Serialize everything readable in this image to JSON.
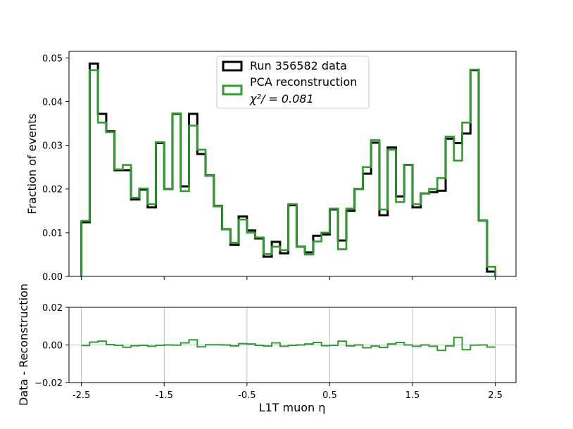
{
  "chart_data": [
    {
      "type": "histogram",
      "ylabel": "Fraction of events",
      "xlim": [
        -2.65,
        2.75
      ],
      "ylim": [
        0,
        0.0515
      ],
      "yticks": [
        "0.00",
        "0.01",
        "0.02",
        "0.03",
        "0.04",
        "0.05"
      ],
      "ytick_values": [
        0,
        0.01,
        0.02,
        0.03,
        0.04,
        0.05
      ],
      "bin_edges_start": -2.5,
      "bin_width": 0.1,
      "legend": {
        "placement": "top-center",
        "entries": [
          {
            "label": "Run 356582 data",
            "color": "#000000"
          },
          {
            "label": "PCA reconstruction",
            "color": "#2ca02c"
          }
        ],
        "chi2_text": "χ²/ = 0.081"
      },
      "series": [
        {
          "name": "Run 356582 data",
          "color": "#000000",
          "values": [
            0.0124,
            0.0487,
            0.0372,
            0.0332,
            0.0243,
            0.0243,
            0.0176,
            0.0199,
            0.0158,
            0.0305,
            0.02,
            0.0372,
            0.0206,
            0.0372,
            0.028,
            0.0231,
            0.0161,
            0.0108,
            0.0072,
            0.0137,
            0.0105,
            0.0087,
            0.0045,
            0.0079,
            0.0053,
            0.0163,
            0.0068,
            0.0055,
            0.0093,
            0.0096,
            0.0153,
            0.0082,
            0.015,
            0.02,
            0.0235,
            0.0306,
            0.014,
            0.0295,
            0.0183,
            0.0255,
            0.0158,
            0.019,
            0.0193,
            0.0196,
            0.0315,
            0.0305,
            0.0327,
            0.0472,
            0.0128,
            0.0011
          ]
        },
        {
          "name": "PCA reconstruction",
          "color": "#2ca02c",
          "values": [
            0.0127,
            0.0472,
            0.0352,
            0.033,
            0.0245,
            0.0255,
            0.018,
            0.0201,
            0.0165,
            0.0307,
            0.02,
            0.0373,
            0.0195,
            0.0345,
            0.029,
            0.023,
            0.016,
            0.0108,
            0.0077,
            0.013,
            0.01,
            0.0089,
            0.0051,
            0.0068,
            0.006,
            0.0165,
            0.0068,
            0.005,
            0.008,
            0.01,
            0.0155,
            0.0062,
            0.0155,
            0.02,
            0.025,
            0.0312,
            0.0153,
            0.029,
            0.017,
            0.0255,
            0.0165,
            0.019,
            0.02,
            0.0225,
            0.032,
            0.0265,
            0.0352,
            0.0473,
            0.0128,
            0.0022
          ]
        }
      ]
    },
    {
      "type": "histogram",
      "ylabel": "Data - Reconstruction",
      "xlabel": "L1T muon η",
      "xlim": [
        -2.65,
        2.75
      ],
      "ylim": [
        -0.02,
        0.02
      ],
      "yticks": [
        "−0.02",
        "0.00",
        "0.02"
      ],
      "ytick_values": [
        -0.02,
        0,
        0.02
      ],
      "xticks": [
        "-2.5",
        "-1.5",
        "-0.5",
        "0.5",
        "1.5",
        "2.5"
      ],
      "xtick_values": [
        -2.5,
        -1.5,
        -0.5,
        0.5,
        1.5,
        2.5
      ],
      "grid": true,
      "bin_edges_start": -2.5,
      "bin_width": 0.1,
      "series": [
        {
          "name": "Data - Reconstruction",
          "color": "#2ca02c",
          "values": [
            -0.0003,
            0.0015,
            0.002,
            0.0002,
            -0.0002,
            -0.0012,
            -0.0004,
            -0.0002,
            -0.0007,
            -0.0002,
            0.0,
            -0.0001,
            0.0011,
            0.0027,
            -0.001,
            0.0001,
            0.0001,
            0.0,
            -0.0005,
            0.0007,
            0.0005,
            -0.0002,
            -0.0006,
            0.0011,
            -0.0007,
            -0.0002,
            0.0,
            0.0005,
            0.0013,
            -0.0004,
            -0.0002,
            0.002,
            -0.0005,
            0.0,
            -0.0015,
            -0.0006,
            -0.0013,
            0.0005,
            0.0013,
            0.0,
            -0.0007,
            0.0,
            -0.0007,
            -0.0029,
            -0.0005,
            0.004,
            -0.0025,
            -0.0001,
            0.0,
            -0.0011
          ]
        }
      ]
    }
  ]
}
